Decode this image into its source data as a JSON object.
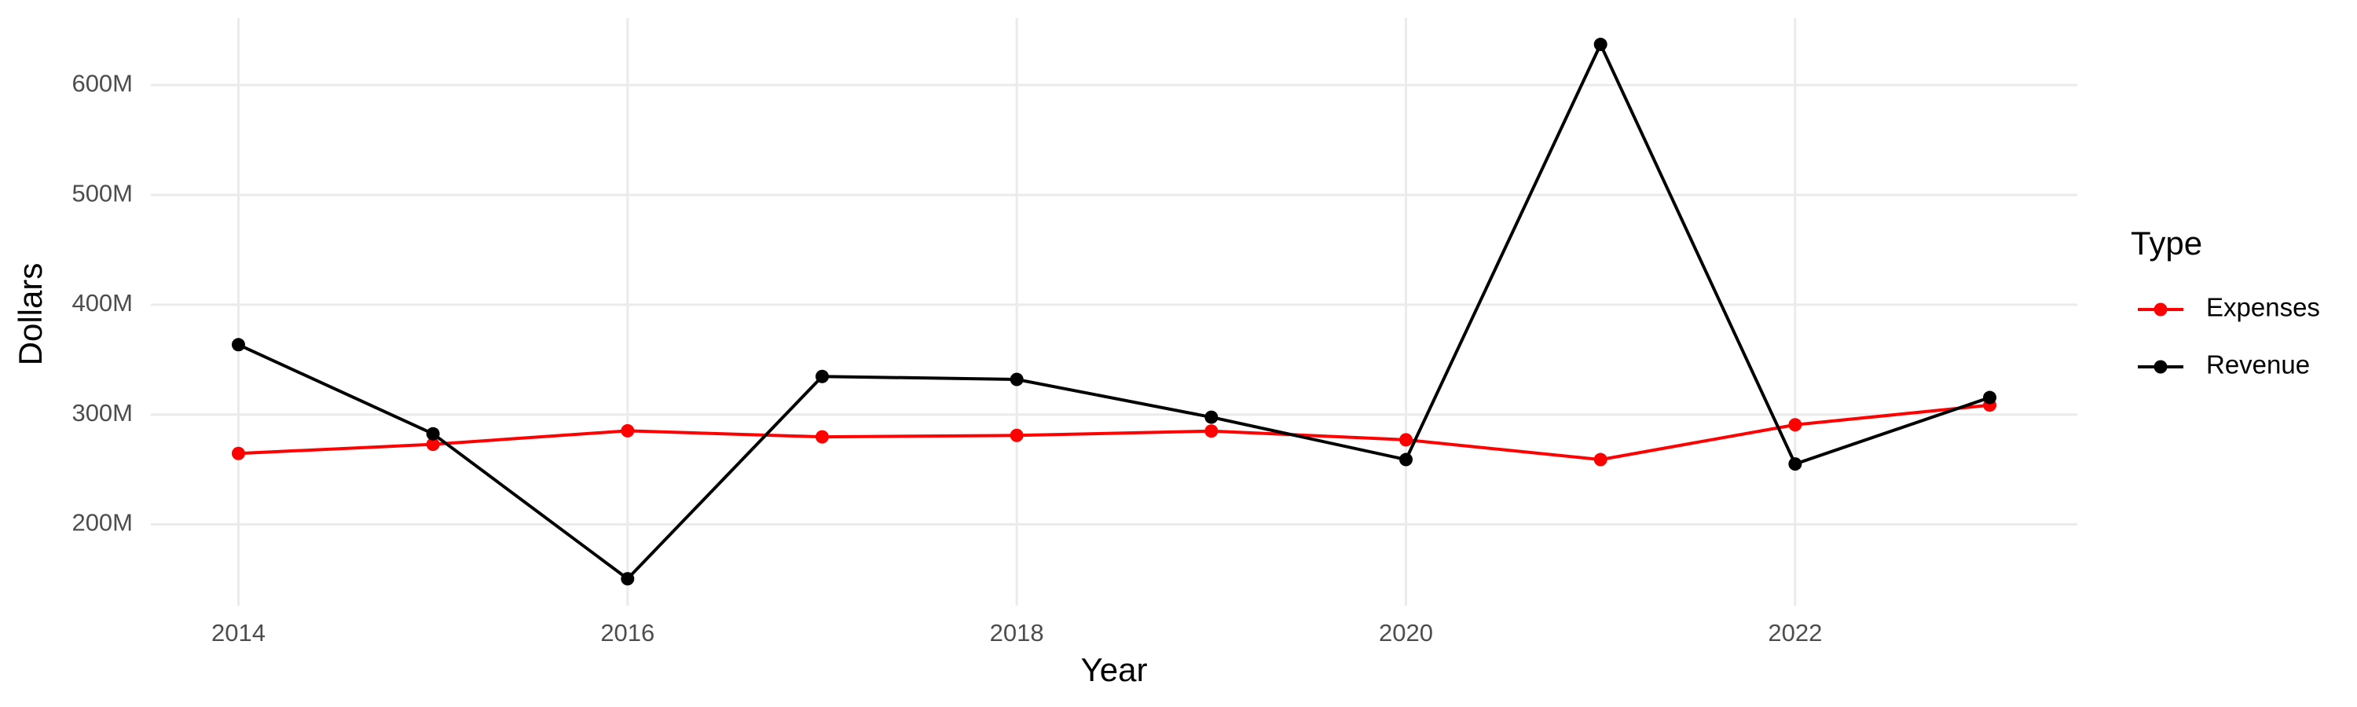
{
  "chart_data": {
    "type": "line",
    "x_label": "Year",
    "y_label": "Dollars",
    "legend_title": "Type",
    "legend_position": "right",
    "grid": true,
    "x": [
      2014,
      2015,
      2016,
      2017,
      2018,
      2019,
      2020,
      2021,
      2022,
      2023
    ],
    "series": [
      {
        "name": "Expenses",
        "color": "#ff0000",
        "values": [
          264600000,
          272900000,
          285200000,
          279700000,
          281000000,
          285000000,
          277000000,
          259000000,
          290700000,
          308600000
        ]
      },
      {
        "name": "Revenue",
        "color": "#000000",
        "values": [
          363600000,
          282500000,
          150500000,
          334700000,
          332000000,
          297600000,
          259000000,
          637000000,
          255000000,
          315500000
        ]
      }
    ],
    "xlim": [
      2013.55,
      2023.45
    ],
    "xticks": [
      2014,
      2016,
      2018,
      2020,
      2022
    ],
    "ylim": [
      126000000,
      661000000
    ],
    "yticks": [
      {
        "value": 200000000,
        "label": "200M"
      },
      {
        "value": 300000000,
        "label": "300M"
      },
      {
        "value": 400000000,
        "label": "400M"
      },
      {
        "value": 500000000,
        "label": "500M"
      },
      {
        "value": 600000000,
        "label": "600M"
      }
    ]
  }
}
